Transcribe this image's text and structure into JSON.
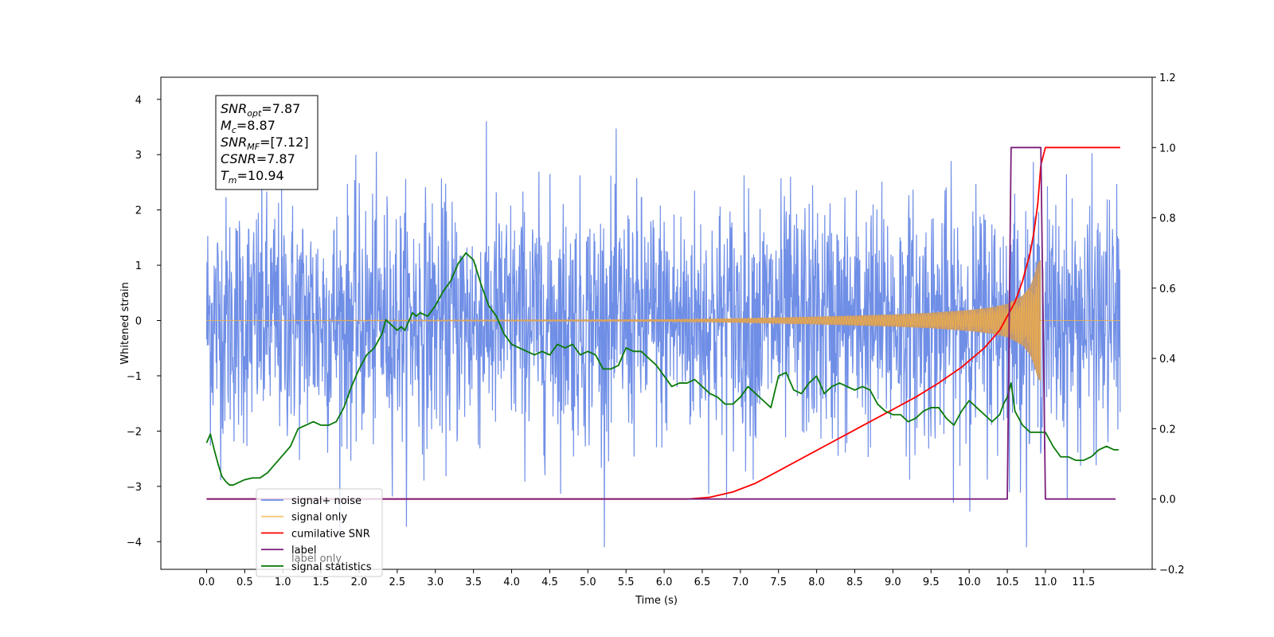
{
  "chart_data": {
    "type": "line",
    "xlabel": "Time (s)",
    "ylabel_left": "Whitened strain",
    "ylabel_right": "",
    "xlim": [
      -0.6,
      12.4
    ],
    "ylim_left": [
      -4.5,
      4.4
    ],
    "ylim_right": [
      -0.2,
      1.2
    ],
    "x_ticks": [
      0.0,
      0.5,
      1.0,
      1.5,
      2.0,
      2.5,
      3.0,
      3.5,
      4.0,
      4.5,
      5.0,
      5.5,
      6.0,
      6.5,
      7.0,
      7.5,
      8.0,
      8.5,
      9.0,
      9.5,
      10.0,
      10.5,
      11.0,
      11.5
    ],
    "x_tick_labels": [
      "0.0",
      "0.5",
      "1.0",
      "1.5",
      "2.0",
      "2.5",
      "3.0",
      "3.5",
      "4.0",
      "4.5",
      "5.0",
      "5.5",
      "6.0",
      "6.5",
      "7.0",
      "7.5",
      "8.0",
      "8.5",
      "9.0",
      "9.5",
      "10.0",
      "10.5",
      "11.0",
      "11.5"
    ],
    "y_ticks_left": [
      -4,
      -3,
      -2,
      -1,
      0,
      1,
      2,
      3,
      4
    ],
    "y_tick_labels_left": [
      "−4",
      "−3",
      "−2",
      "−1",
      "0",
      "1",
      "2",
      "3",
      "4"
    ],
    "y_ticks_right": [
      -0.2,
      0.0,
      0.2,
      0.4,
      0.6,
      0.8,
      1.0,
      1.2
    ],
    "y_tick_labels_right": [
      "−0.2",
      "0.0",
      "0.2",
      "0.4",
      "0.6",
      "0.8",
      "1.0",
      "1.2"
    ],
    "grid": false,
    "legend_position": "lower-left",
    "annotation": [
      {
        "base": "SNR",
        "sub": "opt",
        "value": "=7.87"
      },
      {
        "base": "M",
        "sub": "c",
        "value": "=8.87"
      },
      {
        "base": "SNR",
        "sub": "MF",
        "value": "=[7.12]"
      },
      {
        "base": "CSNR",
        "sub": "",
        "value": "=7.87"
      },
      {
        "base": "T",
        "sub": "m",
        "value": "=10.94"
      }
    ],
    "series": [
      {
        "name": "signal+ noise",
        "axis": "left",
        "color": "#6f8ee6",
        "style": "noise",
        "x_range": [
          0.0,
          11.98
        ],
        "amplitude_sigma": 1.1,
        "approx_range": [
          -4.1,
          4.0
        ]
      },
      {
        "name": "signal only",
        "axis": "left",
        "color": "#f5b041",
        "style": "chirp",
        "x_range": [
          0.0,
          11.98
        ],
        "envelope": {
          "x": [
            0.0,
            6.0,
            7.0,
            8.0,
            9.0,
            9.5,
            10.0,
            10.3,
            10.5,
            10.7,
            10.8,
            10.85,
            10.9,
            10.94
          ],
          "y": [
            0.0,
            0.02,
            0.04,
            0.07,
            0.11,
            0.14,
            0.19,
            0.24,
            0.3,
            0.45,
            0.62,
            0.8,
            1.05,
            1.1
          ]
        },
        "fill_color": "#c79a6b"
      },
      {
        "name": "cumilative SNR",
        "axis": "right",
        "color": "#ff0000",
        "x": [
          0.0,
          6.3,
          6.6,
          6.9,
          7.2,
          7.5,
          7.8,
          8.1,
          8.4,
          8.7,
          9.0,
          9.3,
          9.6,
          9.9,
          10.2,
          10.4,
          10.6,
          10.7,
          10.8,
          10.85,
          10.9,
          10.94,
          11.0,
          11.98
        ],
        "y": [
          0.0,
          0.0,
          0.005,
          0.02,
          0.045,
          0.08,
          0.115,
          0.15,
          0.185,
          0.22,
          0.255,
          0.29,
          0.33,
          0.375,
          0.43,
          0.48,
          0.56,
          0.62,
          0.7,
          0.76,
          0.84,
          0.95,
          1.0,
          1.0
        ]
      },
      {
        "name": "label",
        "axis": "right",
        "color": "#7b1f7b",
        "x": [
          0.0,
          10.5,
          10.55,
          10.94,
          11.0,
          11.92
        ],
        "y": [
          0.0,
          0.0,
          1.0,
          1.0,
          0.0,
          0.0
        ]
      },
      {
        "name": "label only",
        "axis": "right",
        "color": "#7b1f7b",
        "legend_occluded": true,
        "x": [],
        "y": []
      },
      {
        "name": "signal statistics",
        "axis": "right",
        "color": "#0a7a0a",
        "x": [
          0.0,
          0.05,
          0.1,
          0.15,
          0.2,
          0.25,
          0.3,
          0.35,
          0.4,
          0.5,
          0.6,
          0.7,
          0.8,
          0.9,
          1.0,
          1.1,
          1.2,
          1.3,
          1.4,
          1.5,
          1.6,
          1.7,
          1.8,
          1.9,
          2.0,
          2.1,
          2.2,
          2.3,
          2.35,
          2.4,
          2.5,
          2.55,
          2.6,
          2.7,
          2.75,
          2.8,
          2.9,
          3.0,
          3.1,
          3.2,
          3.3,
          3.4,
          3.5,
          3.6,
          3.7,
          3.8,
          3.9,
          4.0,
          4.1,
          4.2,
          4.3,
          4.4,
          4.5,
          4.6,
          4.7,
          4.8,
          4.9,
          5.0,
          5.1,
          5.2,
          5.3,
          5.4,
          5.5,
          5.6,
          5.7,
          5.8,
          5.9,
          6.0,
          6.1,
          6.2,
          6.3,
          6.4,
          6.5,
          6.6,
          6.7,
          6.8,
          6.9,
          7.0,
          7.1,
          7.2,
          7.3,
          7.4,
          7.5,
          7.6,
          7.7,
          7.8,
          7.9,
          8.0,
          8.1,
          8.2,
          8.3,
          8.4,
          8.5,
          8.6,
          8.7,
          8.8,
          8.9,
          9.0,
          9.1,
          9.2,
          9.3,
          9.4,
          9.5,
          9.6,
          9.7,
          9.8,
          9.9,
          10.0,
          10.1,
          10.2,
          10.3,
          10.4,
          10.45,
          10.5,
          10.55,
          10.6,
          10.7,
          10.8,
          10.9,
          11.0,
          11.1,
          11.2,
          11.3,
          11.4,
          11.5,
          11.6,
          11.7,
          11.8,
          11.9,
          11.96
        ],
        "y": [
          0.16,
          0.185,
          0.14,
          0.1,
          0.065,
          0.05,
          0.04,
          0.04,
          0.045,
          0.055,
          0.06,
          0.06,
          0.075,
          0.1,
          0.125,
          0.15,
          0.2,
          0.21,
          0.22,
          0.21,
          0.21,
          0.22,
          0.26,
          0.32,
          0.37,
          0.41,
          0.43,
          0.47,
          0.51,
          0.5,
          0.48,
          0.49,
          0.48,
          0.53,
          0.52,
          0.53,
          0.52,
          0.55,
          0.59,
          0.62,
          0.67,
          0.7,
          0.68,
          0.61,
          0.55,
          0.52,
          0.47,
          0.44,
          0.43,
          0.42,
          0.41,
          0.42,
          0.41,
          0.44,
          0.43,
          0.44,
          0.41,
          0.42,
          0.41,
          0.37,
          0.37,
          0.38,
          0.43,
          0.42,
          0.42,
          0.4,
          0.38,
          0.35,
          0.32,
          0.33,
          0.33,
          0.34,
          0.32,
          0.3,
          0.29,
          0.27,
          0.27,
          0.29,
          0.32,
          0.3,
          0.28,
          0.26,
          0.35,
          0.36,
          0.31,
          0.3,
          0.33,
          0.35,
          0.3,
          0.32,
          0.33,
          0.32,
          0.31,
          0.32,
          0.31,
          0.27,
          0.25,
          0.24,
          0.24,
          0.22,
          0.23,
          0.25,
          0.26,
          0.26,
          0.23,
          0.21,
          0.25,
          0.28,
          0.26,
          0.24,
          0.22,
          0.24,
          0.27,
          0.29,
          0.33,
          0.25,
          0.21,
          0.19,
          0.19,
          0.19,
          0.15,
          0.12,
          0.12,
          0.11,
          0.11,
          0.12,
          0.14,
          0.15,
          0.14,
          0.14
        ]
      }
    ]
  }
}
